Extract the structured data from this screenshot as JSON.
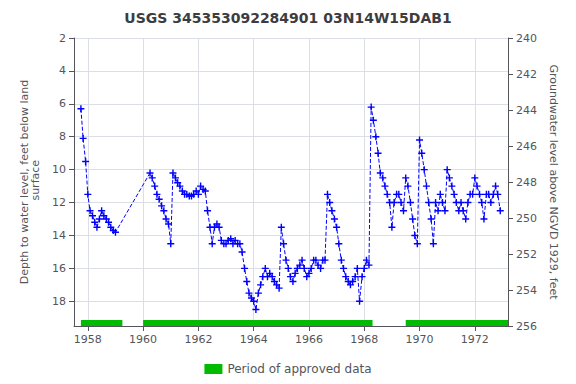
{
  "chart_data": {
    "type": "line",
    "title": "USGS 345353092284901 03N14W15DAB1",
    "ylabel": "Depth to water level, feet below land\n surface",
    "y2label": "Groundwater level above NGVD 1929, feet",
    "xlim": [
      1957.5,
      1973.2
    ],
    "xticks": [
      1958,
      1960,
      1962,
      1964,
      1966,
      1968,
      1970,
      1972
    ],
    "ylim": [
      19.5,
      2
    ],
    "yticks": [
      2,
      4,
      6,
      8,
      10,
      12,
      14,
      16,
      18
    ],
    "y2lim": [
      256,
      240
    ],
    "y2ticks": [
      256,
      254,
      252,
      250,
      248,
      246,
      244,
      242,
      240
    ],
    "grid": true,
    "legend": "bottom",
    "series": [
      {
        "type": "line",
        "color": "#0000ff",
        "marker": "plus",
        "line_style": "dashed",
        "x": [
          1957.75,
          1957.83,
          1957.92,
          1958.0,
          1958.08,
          1958.17,
          1958.25,
          1958.33,
          1958.42,
          1958.5,
          1958.58,
          1958.67,
          1958.75,
          1958.83,
          1958.92,
          1959.0,
          1960.25,
          1960.33,
          1960.42,
          1960.5,
          1960.58,
          1960.67,
          1960.75,
          1960.83,
          1960.92,
          1961.0,
          1961.08,
          1961.17,
          1961.25,
          1961.33,
          1961.42,
          1961.5,
          1961.58,
          1961.67,
          1961.75,
          1961.83,
          1961.92,
          1962.0,
          1962.08,
          1962.17,
          1962.25,
          1962.33,
          1962.42,
          1962.5,
          1962.58,
          1962.67,
          1962.75,
          1962.83,
          1962.92,
          1963.0,
          1963.08,
          1963.17,
          1963.25,
          1963.33,
          1963.42,
          1963.5,
          1963.58,
          1963.67,
          1963.75,
          1963.83,
          1963.92,
          1964.0,
          1964.08,
          1964.17,
          1964.25,
          1964.33,
          1964.42,
          1964.5,
          1964.58,
          1964.67,
          1964.75,
          1964.83,
          1964.92,
          1965.0,
          1965.08,
          1965.17,
          1965.25,
          1965.33,
          1965.42,
          1965.5,
          1965.58,
          1965.67,
          1965.75,
          1965.83,
          1965.92,
          1966.0,
          1966.08,
          1966.17,
          1966.25,
          1966.33,
          1966.42,
          1966.5,
          1966.58,
          1966.67,
          1966.75,
          1966.83,
          1966.92,
          1967.0,
          1967.08,
          1967.17,
          1967.25,
          1967.33,
          1967.42,
          1967.5,
          1967.58,
          1967.67,
          1967.75,
          1967.83,
          1967.92,
          1968.0,
          1968.08,
          1968.17,
          1968.25,
          1968.33,
          1968.42,
          1968.5,
          1968.58,
          1968.67,
          1968.75,
          1968.83,
          1968.92,
          1969.0,
          1969.08,
          1969.17,
          1969.25,
          1969.33,
          1969.42,
          1969.5,
          1969.58,
          1969.67,
          1969.75,
          1969.83,
          1969.92,
          1970.0,
          1970.08,
          1970.17,
          1970.25,
          1970.33,
          1970.42,
          1970.5,
          1970.58,
          1970.67,
          1970.75,
          1970.83,
          1970.92,
          1971.0,
          1971.08,
          1971.17,
          1971.25,
          1971.33,
          1971.42,
          1971.5,
          1971.58,
          1971.67,
          1971.75,
          1971.83,
          1971.92,
          1972.0,
          1972.08,
          1972.17,
          1972.25,
          1972.33,
          1972.42,
          1972.5,
          1972.58,
          1972.67,
          1972.75,
          1972.83,
          1972.92
        ],
        "values": [
          6.3,
          8.1,
          9.5,
          11.5,
          12.5,
          12.8,
          13.2,
          13.5,
          13.0,
          12.5,
          12.8,
          13.0,
          13.2,
          13.5,
          13.7,
          13.8,
          10.2,
          10.5,
          11.0,
          11.5,
          11.8,
          12.2,
          12.5,
          13.0,
          13.3,
          14.5,
          10.2,
          10.5,
          10.8,
          11.0,
          11.3,
          11.5,
          11.5,
          11.6,
          11.6,
          11.5,
          11.3,
          11.5,
          11.0,
          11.2,
          11.3,
          12.5,
          13.5,
          14.5,
          13.5,
          13.3,
          13.5,
          14.3,
          14.5,
          14.5,
          14.3,
          14.2,
          14.5,
          14.3,
          14.5,
          14.5,
          15.0,
          16.0,
          16.8,
          17.5,
          17.8,
          18.0,
          18.5,
          17.5,
          17.0,
          16.5,
          16.0,
          16.5,
          16.3,
          16.5,
          16.8,
          17.0,
          17.2,
          13.5,
          14.5,
          15.5,
          16.0,
          16.5,
          16.8,
          16.3,
          16.0,
          15.8,
          15.5,
          16.0,
          16.5,
          16.3,
          16.0,
          15.5,
          15.5,
          15.8,
          16.0,
          15.5,
          15.5,
          11.5,
          12.0,
          12.5,
          13.0,
          13.5,
          14.5,
          15.5,
          16.0,
          16.5,
          16.8,
          17.0,
          16.8,
          16.5,
          16.0,
          18.0,
          16.5,
          16.0,
          15.5,
          15.8,
          6.2,
          7.0,
          8.0,
          9.0,
          10.2,
          10.5,
          11.0,
          11.5,
          12.0,
          13.5,
          12.0,
          11.5,
          11.5,
          12.0,
          12.5,
          10.5,
          11.0,
          12.0,
          13.0,
          14.0,
          14.5,
          8.2,
          9.0,
          10.0,
          11.0,
          12.0,
          13.0,
          14.5,
          12.0,
          12.5,
          11.5,
          12.0,
          12.5,
          10.0,
          10.5,
          11.0,
          11.5,
          12.0,
          12.5,
          12.0,
          12.5,
          13.0,
          12.0,
          11.5,
          11.5,
          10.5,
          11.0,
          11.5,
          12.0,
          13.0,
          11.5,
          11.5,
          12.0,
          11.5,
          11.0,
          11.5,
          12.5
        ]
      },
      {
        "name": "Period of approved data",
        "type": "span",
        "color": "#00bb00",
        "periods": [
          [
            1957.75,
            1959.25
          ],
          [
            1960.0,
            1968.3
          ],
          [
            1969.5,
            1973.2
          ]
        ]
      }
    ]
  }
}
